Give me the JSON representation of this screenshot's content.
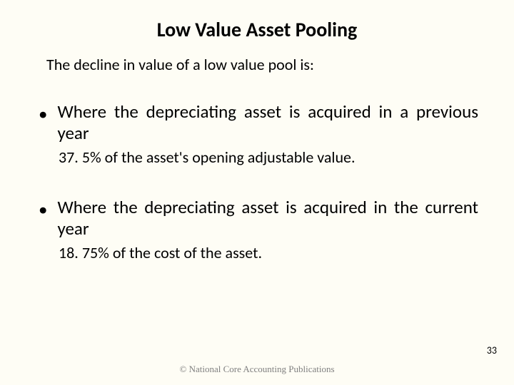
{
  "slide": {
    "title": "Low Value Asset Pooling",
    "intro": "The decline in value of a low value pool is:",
    "bullets": [
      {
        "text": "Where the depreciating asset is acquired in a previous year",
        "sub": "37. 5% of the asset's opening adjustable value."
      },
      {
        "text": "Where the depreciating asset is acquired in the current year",
        "sub": "18. 75% of the cost of the asset."
      }
    ],
    "footer": "© National Core Accounting Publications",
    "page_number": "33"
  },
  "style": {
    "background_color": "#fefdf5",
    "title_fontsize": 28,
    "title_color": "#000000",
    "body_fontsize": 25,
    "body_color": "#000000",
    "sub_fontsize": 22,
    "footer_color": "#808080",
    "footer_fontsize": 13,
    "page_number_fontsize": 14,
    "bullet_marker": "•"
  }
}
